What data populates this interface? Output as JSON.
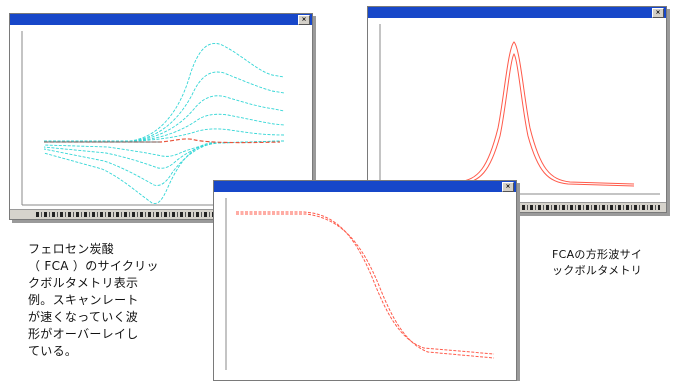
{
  "captions": {
    "left": [
      "フェロセン炭酸",
      "（ FCA ）のサイクリッ",
      "クボルタメトリ表示",
      "例。スキャンレート",
      "が速くなっていく波",
      "形がオーバーレイし",
      "ている。"
    ],
    "right": [
      "FCAの方形波サイ",
      "ックボルタメトリ"
    ]
  },
  "windows": {
    "left": {
      "title": "",
      "curve_color": "#33d6d6",
      "highlight_color": "#e8553d"
    },
    "right": {
      "title": "",
      "curve_color": "#ff5a4a"
    },
    "bottom": {
      "title": "",
      "curve_color": "#ff5a4a"
    }
  },
  "colors": {
    "titlebar": "#1747c9",
    "frame": "#7a7a7a"
  }
}
